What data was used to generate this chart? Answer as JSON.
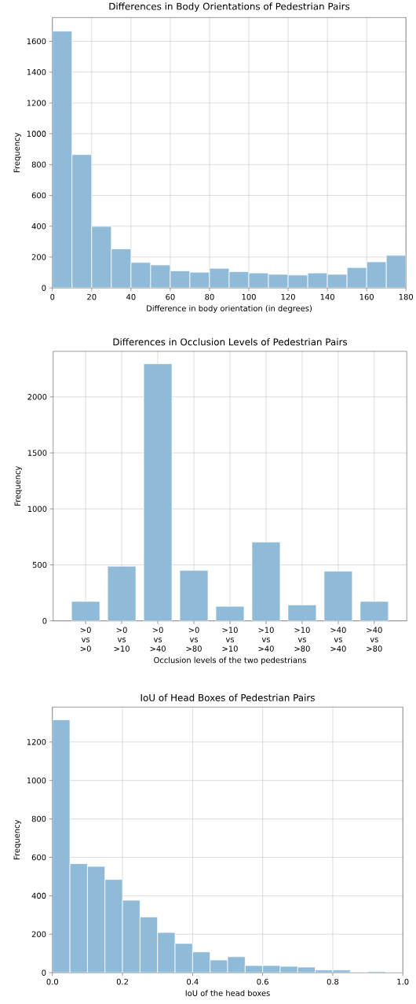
{
  "chart_data": [
    {
      "type": "histogram",
      "title": "Differences in Body Orientations of Pedestrian Pairs",
      "xlabel": "Difference in body orientation (in degrees)",
      "ylabel": "Frequency",
      "color": "#8fbbd9",
      "grid": true,
      "bins": [
        0,
        10,
        20,
        30,
        40,
        50,
        60,
        70,
        80,
        90,
        100,
        110,
        120,
        130,
        140,
        150,
        160,
        170,
        180
      ],
      "values": [
        1666,
        865,
        399,
        253,
        165,
        149,
        111,
        102,
        127,
        105,
        97,
        88,
        83,
        97,
        88,
        132,
        169,
        211
      ],
      "xlim": [
        0,
        180
      ],
      "ylim": [
        0,
        1754
      ],
      "xticks": [
        0,
        20,
        40,
        60,
        80,
        100,
        120,
        140,
        160,
        180
      ],
      "yticks": [
        0,
        200,
        400,
        600,
        800,
        1000,
        1200,
        1400,
        1600
      ]
    },
    {
      "type": "bar",
      "title": "Differences in Occlusion Levels of Pedestrian Pairs",
      "xlabel": "Occlusion levels of the two pedestrians",
      "ylabel": "Frequency",
      "color": "#8fbbd9",
      "grid": true,
      "categories": [
        ">0 vs >0",
        ">0 vs >10",
        ">0 vs >40",
        ">0 vs >80",
        ">10 vs >10",
        ">10 vs >40",
        ">10 vs >80",
        ">40 vs >40",
        ">40 vs >80"
      ],
      "values": [
        173,
        488,
        2296,
        450,
        130,
        703,
        142,
        443,
        173
      ],
      "ylim": [
        0,
        2407
      ],
      "yticks": [
        0,
        500,
        1000,
        1500,
        2000
      ]
    },
    {
      "type": "histogram",
      "title": "IoU of Head Boxes of Pedestrian Pairs",
      "xlabel": "IoU of the head boxes",
      "ylabel": "Frequency",
      "color": "#8fbbd9",
      "grid": true,
      "bins": [
        0,
        0.05,
        0.1,
        0.15,
        0.2,
        0.25,
        0.3,
        0.35,
        0.4,
        0.45,
        0.5,
        0.55,
        0.6,
        0.65,
        0.7,
        0.75,
        0.8,
        0.85,
        0.9,
        0.95,
        1.0
      ],
      "values": [
        1316,
        567,
        553,
        485,
        377,
        290,
        209,
        152,
        108,
        66,
        83,
        37,
        37,
        33,
        29,
        14,
        14,
        2,
        6,
        2
      ],
      "xlim": [
        0,
        1
      ],
      "ylim": [
        0,
        1382
      ],
      "xticks": [
        {
          "value": 0,
          "label": "0.0"
        },
        {
          "value": 0.2,
          "label": "0.2"
        },
        {
          "value": 0.4,
          "label": "0.4"
        },
        {
          "value": 0.6,
          "label": "0.6"
        },
        {
          "value": 0.8,
          "label": "0.8"
        },
        {
          "value": 1.0,
          "label": "1.0"
        }
      ],
      "yticks": [
        0,
        200,
        400,
        600,
        800,
        1000,
        1200
      ]
    }
  ]
}
